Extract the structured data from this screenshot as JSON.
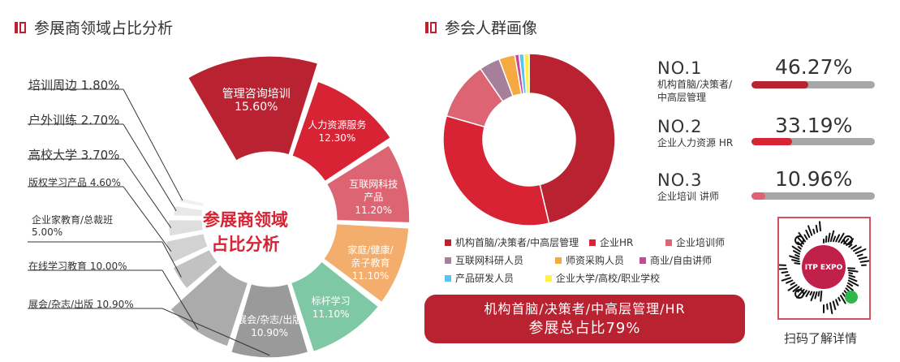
{
  "left": {
    "title": "参展商领域占比分析",
    "center_label": [
      "参展商领域",
      "占比分析"
    ]
  },
  "right": {
    "title": "参会人群画像",
    "ranks": [
      {
        "no": "NO.1",
        "desc": [
          "机构首脑/决策者/",
          "中高层管理"
        ],
        "pct": "46.27%",
        "value": 46.27,
        "color": "#b92231"
      },
      {
        "no": "NO.2",
        "desc": [
          "企业人力资源 HR"
        ],
        "pct": "33.19%",
        "value": 33.19,
        "color": "#d72334"
      },
      {
        "no": "NO.3",
        "desc": [
          "企业培训 讲师"
        ],
        "pct": "10.96%",
        "value": 10.96,
        "color": "#dd6473"
      }
    ],
    "summary": [
      "机构首脑/决策者/中高层管理/HR",
      "参展总占比79%"
    ],
    "qr_caption": "扫码了解详情",
    "qr_logo": "ITP EXPO"
  },
  "chart_data": [
    {
      "type": "pie",
      "variant": "rose-donut",
      "title": "参展商领域占比分析",
      "slices": [
        {
          "label": "管理咨询培训",
          "value": 15.6,
          "text": "15.60%",
          "color": "#b92231"
        },
        {
          "label": "人力资源服务",
          "value": 12.3,
          "text": "12.30%",
          "color": "#d72334"
        },
        {
          "label": "互联网科技产品",
          "value": 11.2,
          "text": "11.20%",
          "color": "#dd6473"
        },
        {
          "label": "家庭/健康/亲子教育",
          "value": 11.1,
          "text": "11.10%",
          "color": "#f3ae6e"
        },
        {
          "label": "标杆学习",
          "value": 11.1,
          "text": "11.10%",
          "color": "#7fc8a5"
        },
        {
          "label": "展会/杂志/出版",
          "value": 10.9,
          "text": "10.90%",
          "color": "#9a9a9a"
        },
        {
          "label": "在线学习教育",
          "value": 10.0,
          "text": "10.00%",
          "color": "#ababab"
        },
        {
          "label": "企业家教育/总裁班",
          "value": 5.0,
          "text": "5.00%",
          "color": "#c2c2c2"
        },
        {
          "label": "版权学习产品",
          "value": 4.6,
          "text": "4.60%",
          "color": "#d2d2d2"
        },
        {
          "label": "高校大学",
          "value": 3.7,
          "text": "3.70%",
          "color": "#dedede"
        },
        {
          "label": "户外训练",
          "value": 2.7,
          "text": "2.70%",
          "color": "#e8e8e8"
        },
        {
          "label": "培训周边",
          "value": 1.8,
          "text": "1.80%",
          "color": "#f0f0f0"
        }
      ]
    },
    {
      "type": "pie",
      "variant": "donut",
      "title": "参会人群画像",
      "slices": [
        {
          "label": "机构首脑/决策者/中高层管理",
          "value": 46.27,
          "color": "#b92231"
        },
        {
          "label": "企业HR",
          "value": 33.19,
          "color": "#d72334"
        },
        {
          "label": "企业培训师",
          "value": 10.96,
          "color": "#dd6473"
        },
        {
          "label": "互联网科研人员",
          "value": 3.9,
          "color": "#a6809b"
        },
        {
          "label": "师资采购人员",
          "value": 3.0,
          "color": "#f4aa41"
        },
        {
          "label": "商业/自由讲师",
          "value": 0.8,
          "color": "#c44a95"
        },
        {
          "label": "产品研发人员",
          "value": 0.9,
          "color": "#5bc3f0"
        },
        {
          "label": "企业大学/高校/职业学校",
          "value": 1.0,
          "color": "#fff04a"
        }
      ]
    }
  ]
}
